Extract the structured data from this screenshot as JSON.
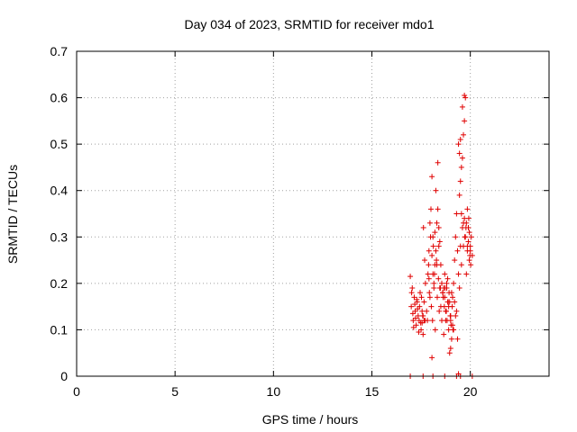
{
  "chart_data": {
    "type": "scatter",
    "title": "Day 034 of 2023, SRMTID for receiver mdo1",
    "xlabel": "GPS time / hours",
    "ylabel": "SRMTID / TECUs",
    "xlim": [
      0,
      24
    ],
    "ylim": [
      0,
      0.7
    ],
    "xticks": [
      "0",
      "5",
      "10",
      "15",
      "20"
    ],
    "yticks": [
      "0",
      "0.1",
      "0.2",
      "0.3",
      "0.4",
      "0.5",
      "0.6",
      "0.7"
    ],
    "grid": true,
    "marker": "+",
    "color": "#e00000",
    "series": [
      {
        "x": [
          16.95,
          17.0,
          17.05,
          17.1,
          17.15,
          17.2,
          17.25,
          17.3,
          17.35,
          17.4,
          17.45,
          17.5,
          17.55,
          17.6,
          17.65,
          17.7,
          17.02,
          17.08,
          17.12,
          17.18,
          17.22,
          17.28,
          17.32,
          17.38,
          17.42,
          17.48,
          17.52,
          17.58,
          17.62,
          17.68,
          17.72,
          17.78,
          17.82,
          17.88,
          17.92,
          17.98,
          18.02,
          18.08,
          18.12,
          18.18,
          18.22,
          18.28,
          18.32,
          18.38,
          18.42,
          18.48,
          17.85,
          17.9,
          17.95,
          18.0,
          18.05,
          18.1,
          18.15,
          18.2,
          18.25,
          18.3,
          18.35,
          18.4,
          18.45,
          18.5,
          18.55,
          18.6,
          18.65,
          18.7,
          18.75,
          18.8,
          18.85,
          18.9,
          18.95,
          19.0,
          19.05,
          19.1,
          19.15,
          19.2,
          19.25,
          19.3,
          19.35,
          19.4,
          19.45,
          19.5,
          19.55,
          19.6,
          19.65,
          19.7,
          19.75,
          19.8,
          19.85,
          19.9,
          19.95,
          20.0,
          20.05,
          20.1,
          17.6,
          17.9,
          18.05,
          18.2,
          18.35,
          18.15,
          18.3,
          18.45,
          17.95,
          18.1,
          18.25,
          19.4,
          19.45,
          19.5,
          19.55,
          19.6,
          19.65,
          19.7,
          19.5,
          19.6,
          19.7,
          19.75,
          19.8,
          19.85,
          19.9,
          19.95,
          20.0,
          19.45,
          19.55,
          19.65,
          19.72,
          19.78,
          19.85,
          19.92,
          19.98,
          20.02,
          18.6,
          18.7,
          18.8,
          18.9,
          19.0,
          19.1,
          19.2,
          19.3,
          18.65,
          18.75,
          18.85,
          18.95,
          19.05,
          19.15,
          19.25,
          19.35,
          18.55,
          18.62,
          18.68,
          18.72,
          18.78,
          18.82,
          18.88,
          18.92,
          18.98,
          19.02,
          19.08,
          19.12,
          16.95,
          17.6,
          18.1,
          18.7,
          19.3,
          19.4,
          19.5,
          20.1,
          18.05,
          17.55,
          17.65,
          18.4,
          18.5,
          19.0
        ],
        "y": [
          0.215,
          0.15,
          0.19,
          0.12,
          0.17,
          0.14,
          0.11,
          0.16,
          0.13,
          0.12,
          0.18,
          0.1,
          0.14,
          0.09,
          0.16,
          0.12,
          0.18,
          0.135,
          0.105,
          0.155,
          0.125,
          0.165,
          0.145,
          0.095,
          0.15,
          0.115,
          0.17,
          0.13,
          0.32,
          0.25,
          0.2,
          0.14,
          0.12,
          0.24,
          0.18,
          0.3,
          0.15,
          0.12,
          0.28,
          0.22,
          0.1,
          0.25,
          0.17,
          0.21,
          0.14,
          0.19,
          0.22,
          0.27,
          0.33,
          0.36,
          0.43,
          0.3,
          0.2,
          0.24,
          0.4,
          0.33,
          0.46,
          0.28,
          0.19,
          0.15,
          0.12,
          0.18,
          0.09,
          0.22,
          0.14,
          0.19,
          0.16,
          0.1,
          0.05,
          0.12,
          0.08,
          0.17,
          0.2,
          0.25,
          0.3,
          0.35,
          0.27,
          0.22,
          0.19,
          0.28,
          0.24,
          0.32,
          0.28,
          0.34,
          0.3,
          0.22,
          0.27,
          0.32,
          0.25,
          0.28,
          0.3,
          0.26,
          0.13,
          0.21,
          0.26,
          0.31,
          0.36,
          0.19,
          0.24,
          0.29,
          0.17,
          0.22,
          0.27,
          0.5,
          0.48,
          0.51,
          0.45,
          0.47,
          0.52,
          0.55,
          0.42,
          0.58,
          0.605,
          0.6,
          0.33,
          0.36,
          0.29,
          0.31,
          0.27,
          0.39,
          0.35,
          0.33,
          0.3,
          0.32,
          0.28,
          0.34,
          0.26,
          0.24,
          0.18,
          0.17,
          0.2,
          0.15,
          0.13,
          0.11,
          0.16,
          0.14,
          0.19,
          0.12,
          0.21,
          0.16,
          0.18,
          0.1,
          0.13,
          0.08,
          0.2,
          0.17,
          0.15,
          0.19,
          0.14,
          0.12,
          0.16,
          0.18,
          0.13,
          0.11,
          0.15,
          0.1,
          0.0,
          0.0,
          0.0,
          0.0,
          0.0,
          0.005,
          0.0,
          0.0,
          0.04,
          0.115,
          0.12,
          0.32,
          0.24,
          0.06
        ]
      }
    ]
  }
}
